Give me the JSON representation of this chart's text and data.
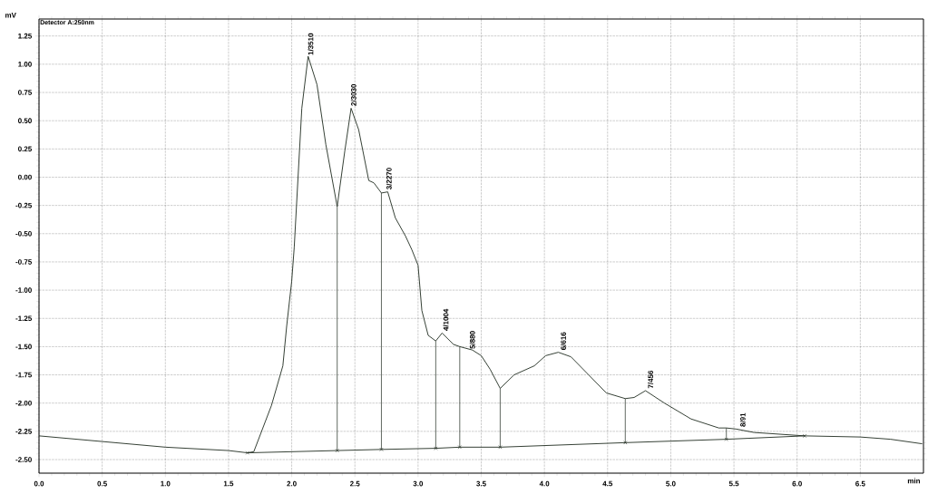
{
  "chart_data": {
    "type": "line",
    "xlabel": "min",
    "ylabel": "mV",
    "xlim": [
      0,
      7.0
    ],
    "ylim": [
      -2.62,
      1.4
    ],
    "xticks": [
      {
        "value": 0,
        "label": "0.0"
      },
      {
        "value": 0.5,
        "label": "0.5"
      },
      {
        "value": 1,
        "label": "1.0"
      },
      {
        "value": 1.5,
        "label": "1.5"
      },
      {
        "value": 2,
        "label": "2.0"
      },
      {
        "value": 2.5,
        "label": "2.5"
      },
      {
        "value": 3,
        "label": "3.0"
      },
      {
        "value": 3.5,
        "label": "3.5"
      },
      {
        "value": 4,
        "label": "4.0"
      },
      {
        "value": 4.5,
        "label": "4.5"
      },
      {
        "value": 5,
        "label": "5.0"
      },
      {
        "value": 5.5,
        "label": "5.5"
      },
      {
        "value": 6,
        "label": "6.0"
      },
      {
        "value": 6.5,
        "label": "6.5"
      }
    ],
    "yticks": [
      {
        "value": 1.25,
        "label": "1.25"
      },
      {
        "value": 1,
        "label": "1.00"
      },
      {
        "value": 0.75,
        "label": "0.75"
      },
      {
        "value": 0.5,
        "label": "0.50"
      },
      {
        "value": 0.25,
        "label": "0.25"
      },
      {
        "value": 0,
        "label": "0.00"
      },
      {
        "value": -0.25,
        "label": "-0.25"
      },
      {
        "value": -0.5,
        "label": "-0.50"
      },
      {
        "value": -0.75,
        "label": "-0.75"
      },
      {
        "value": -1,
        "label": "-1.00"
      },
      {
        "value": -1.25,
        "label": "-1.25"
      },
      {
        "value": -1.5,
        "label": "-1.50"
      },
      {
        "value": -1.75,
        "label": "-1.75"
      },
      {
        "value": -2,
        "label": "-2.00"
      },
      {
        "value": -2.25,
        "label": "-2.25"
      },
      {
        "value": -2.5,
        "label": "-2.50"
      }
    ],
    "grid": true,
    "series": [
      {
        "color": "#1e2a1e",
        "line_style": "solid",
        "marker": "none",
        "x": [
          0,
          0.5,
          1.0,
          1.5,
          1.65,
          1.7,
          1.84,
          1.93,
          1.96,
          2.0,
          2.02,
          2.08,
          2.13,
          2.2,
          2.27,
          2.36,
          2.42,
          2.47,
          2.53,
          2.61,
          2.65,
          2.71,
          2.76,
          2.82,
          2.9,
          2.95,
          3.0,
          3.03,
          3.08,
          3.14,
          3.19,
          3.28,
          3.33,
          3.43,
          3.5,
          3.57,
          3.65,
          3.76,
          3.92,
          4.01,
          4.11,
          4.21,
          4.35,
          4.49,
          4.64,
          4.71,
          4.8,
          4.95,
          5.16,
          5.38,
          5.44,
          5.52,
          5.66,
          6.06,
          6.5,
          6.74,
          6.99
        ],
        "values": [
          -2.29,
          -2.34,
          -2.39,
          -2.42,
          -2.44,
          -2.43,
          -2.02,
          -1.67,
          -1.32,
          -0.92,
          -0.62,
          0.61,
          1.07,
          0.82,
          0.29,
          -0.26,
          0.23,
          0.61,
          0.42,
          -0.03,
          -0.05,
          -0.14,
          -0.13,
          -0.36,
          -0.52,
          -0.64,
          -0.78,
          -1.18,
          -1.4,
          -1.45,
          -1.38,
          -1.48,
          -1.5,
          -1.53,
          -1.58,
          -1.7,
          -1.87,
          -1.75,
          -1.67,
          -1.58,
          -1.55,
          -1.59,
          -1.75,
          -1.91,
          -1.96,
          -1.95,
          -1.89,
          -2.0,
          -2.14,
          -2.22,
          -2.22,
          -2.23,
          -2.26,
          -2.29,
          -2.3,
          -2.32,
          -2.36
        ]
      },
      {
        "color": "#1e2a1e",
        "line_style": "solid",
        "marker": "cross",
        "x": [
          1.65,
          2.36,
          2.71,
          3.14,
          3.33,
          3.65,
          4.64,
          5.44,
          6.06
        ],
        "values": [
          -2.44,
          -2.42,
          -2.41,
          -2.4,
          -2.39,
          -2.39,
          -2.35,
          -2.32,
          -2.29
        ],
        "errors": [
          null,
          [
            -2.42,
            -0.26
          ],
          [
            -2.41,
            -0.14
          ],
          [
            -2.4,
            -1.45
          ],
          [
            -2.39,
            -1.5
          ],
          [
            -2.39,
            -1.87
          ],
          [
            -2.35,
            -1.96
          ],
          [
            -2.32,
            -2.22
          ],
          null
        ]
      }
    ],
    "annotations": [
      "Detector A:250nm",
      {
        "text": "1/3510",
        "x": 2.15,
        "y": 1.07
      },
      {
        "text": "2/3030",
        "x": 2.49,
        "y": 0.62
      },
      {
        "text": "3/2270",
        "x": 2.77,
        "y": -0.12
      },
      {
        "text": "4/1004",
        "x": 3.22,
        "y": -1.37
      },
      {
        "text": "5/880",
        "x": 3.43,
        "y": -1.53
      },
      {
        "text": "6/616",
        "x": 4.15,
        "y": -1.54
      },
      {
        "text": "7/456",
        "x": 4.84,
        "y": -1.88
      },
      {
        "text": "8/91",
        "x": 5.57,
        "y": -2.22
      }
    ]
  }
}
